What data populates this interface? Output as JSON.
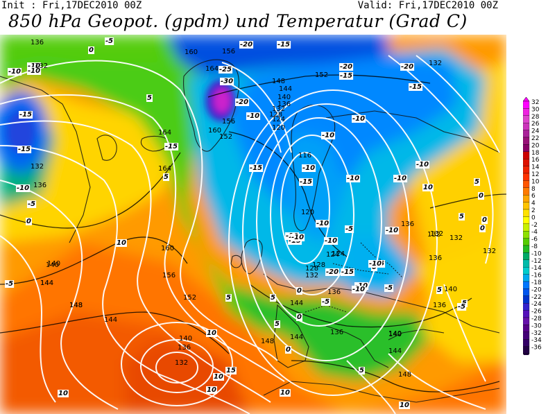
{
  "header": {
    "init_text": "Init : Fri,17DEC2010 00Z",
    "valid_text": "Valid: Fri,17DEC2010 00Z",
    "title": "850 hPa Geopot. (gpdm) und Temperatur (Grad C)"
  },
  "colorbar": {
    "levels": [
      "32",
      "30",
      "28",
      "26",
      "24",
      "22",
      "20",
      "18",
      "16",
      "14",
      "12",
      "10",
      "8",
      "6",
      "4",
      "2",
      "0",
      "-2",
      "-4",
      "-6",
      "-8",
      "-10",
      "-12",
      "-14",
      "-16",
      "-18",
      "-20",
      "-22",
      "-24",
      "-26",
      "-28",
      "-30",
      "-32",
      "-34",
      "-36"
    ],
    "colors": [
      "#ff00ff",
      "#ee22e0",
      "#dd44cc",
      "#cc33bb",
      "#aa2299",
      "#991177",
      "#880066",
      "#cc0000",
      "#dd1100",
      "#ee2200",
      "#ff3300",
      "#ff5500",
      "#ff7a00",
      "#ffa500",
      "#ffc400",
      "#ffe100",
      "#ffff00",
      "#c8f000",
      "#8ee000",
      "#55cc00",
      "#22bb22",
      "#00aa66",
      "#00bbaa",
      "#00cccc",
      "#00aaee",
      "#0077ff",
      "#0055ee",
      "#0033cc",
      "#3322cc",
      "#5511bb",
      "#6611aa",
      "#550088",
      "#440077",
      "#330066",
      "#220044"
    ]
  },
  "map_labels": {
    "temperature": [
      {
        "text": "-15"
      },
      {
        "text": "-10"
      },
      {
        "text": "-5"
      },
      {
        "text": "0"
      },
      {
        "text": "5"
      },
      {
        "text": "-10"
      },
      {
        "text": "-10"
      },
      {
        "text": "-15"
      },
      {
        "text": "-20"
      },
      {
        "text": "-25"
      },
      {
        "text": "-30"
      },
      {
        "text": "-20"
      },
      {
        "text": "-15"
      },
      {
        "text": "-10"
      },
      {
        "text": "-15"
      },
      {
        "text": "-10"
      },
      {
        "text": "-15"
      },
      {
        "text": "-20"
      },
      {
        "text": "-15"
      },
      {
        "text": "-20"
      },
      {
        "text": "-15"
      },
      {
        "text": "-10"
      },
      {
        "text": "-10"
      },
      {
        "text": "-10"
      },
      {
        "text": "-10"
      },
      {
        "text": "-15"
      },
      {
        "text": "-10"
      },
      {
        "text": "-10"
      },
      {
        "text": "-10"
      },
      {
        "text": "-10"
      },
      {
        "text": "-15"
      },
      {
        "text": "-10"
      },
      {
        "text": "-15"
      },
      {
        "text": "-10"
      },
      {
        "text": "-5"
      },
      {
        "text": "-10"
      },
      {
        "text": "-5"
      },
      {
        "text": "0"
      },
      {
        "text": "5"
      },
      {
        "text": "10"
      },
      {
        "text": "5"
      },
      {
        "text": "10"
      },
      {
        "text": "5"
      },
      {
        "text": "0"
      },
      {
        "text": "0"
      },
      {
        "text": "5"
      },
      {
        "text": "10"
      },
      {
        "text": "10"
      },
      {
        "text": "15"
      },
      {
        "text": "10"
      },
      {
        "text": "10"
      },
      {
        "text": "5"
      },
      {
        "text": "10"
      },
      {
        "text": "0"
      },
      {
        "text": "5"
      },
      {
        "text": "0"
      },
      {
        "text": "-5"
      },
      {
        "text": "0"
      },
      {
        "text": "5"
      },
      {
        "text": "5"
      },
      {
        "text": "10"
      },
      {
        "text": "-5"
      },
      {
        "text": "5"
      },
      {
        "text": "-5"
      },
      {
        "text": "0"
      },
      {
        "text": "-5"
      },
      {
        "text": "0"
      },
      {
        "text": "-10"
      },
      {
        "text": "-10"
      },
      {
        "text": "-15"
      },
      {
        "text": "-20"
      },
      {
        "text": "-10"
      }
    ],
    "geopotential": [
      {
        "text": "136"
      },
      {
        "text": "132"
      },
      {
        "text": "160"
      },
      {
        "text": "156"
      },
      {
        "text": "164"
      },
      {
        "text": "164"
      },
      {
        "text": "160"
      },
      {
        "text": "152"
      },
      {
        "text": "156"
      },
      {
        "text": "148"
      },
      {
        "text": "144"
      },
      {
        "text": "140"
      },
      {
        "text": "136"
      },
      {
        "text": "132"
      },
      {
        "text": "128"
      },
      {
        "text": "124"
      },
      {
        "text": "120"
      },
      {
        "text": "152"
      },
      {
        "text": "132"
      },
      {
        "text": "116"
      },
      {
        "text": "120"
      },
      {
        "text": "124"
      },
      {
        "text": "128"
      },
      {
        "text": "132"
      },
      {
        "text": "136"
      },
      {
        "text": "136"
      },
      {
        "text": "132"
      },
      {
        "text": "164"
      },
      {
        "text": "160"
      },
      {
        "text": "156"
      },
      {
        "text": "152"
      },
      {
        "text": "144"
      },
      {
        "text": "140"
      },
      {
        "text": "136"
      },
      {
        "text": "132"
      },
      {
        "text": "136"
      },
      {
        "text": "140"
      },
      {
        "text": "144"
      },
      {
        "text": "148"
      },
      {
        "text": "148"
      },
      {
        "text": "144"
      },
      {
        "text": "140"
      },
      {
        "text": "136"
      },
      {
        "text": "132"
      },
      {
        "text": "148"
      },
      {
        "text": "140"
      },
      {
        "text": "144"
      },
      {
        "text": "132"
      },
      {
        "text": "140"
      },
      {
        "text": "136"
      },
      {
        "text": "132"
      },
      {
        "text": "128"
      },
      {
        "text": "124"
      },
      {
        "text": "132"
      },
      {
        "text": "136"
      },
      {
        "text": "140"
      },
      {
        "text": "144"
      },
      {
        "text": "148"
      },
      {
        "text": "144"
      }
    ]
  }
}
